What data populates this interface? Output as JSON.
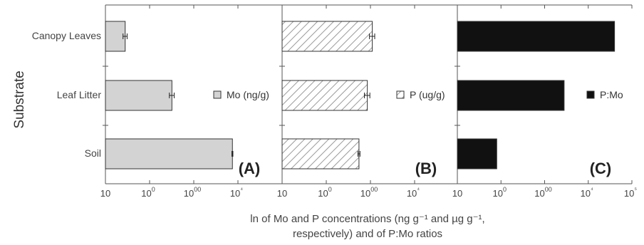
{
  "ylabel": "Substrate",
  "xlabel_line1": "ln of Mo and P concentrations (ng g⁻¹ and µg g⁻¹,",
  "xlabel_line2": "respectively) and of P:Mo ratios",
  "categories": [
    "Canopy Leaves",
    "Leaf Litter",
    "Soil"
  ],
  "chart_data": [
    {
      "type": "bar",
      "orientation": "horizontal",
      "panel": "(A)",
      "x_scale": "log",
      "xlim": [
        10,
        100000
      ],
      "x_tick_labels": [
        "10",
        "100",
        "1000",
        "10⁴"
      ],
      "categories": [
        "Canopy Leaves",
        "Leaf Litter",
        "Soil"
      ],
      "series": [
        {
          "name": "Mo (ng/g)",
          "values": [
            28,
            320,
            7500
          ],
          "errors": [
            3,
            40,
            200
          ]
        }
      ],
      "fill": "#d3d3d3",
      "pattern": "solid"
    },
    {
      "type": "bar",
      "orientation": "horizontal",
      "panel": "(B)",
      "x_scale": "log",
      "xlim": [
        10,
        100000
      ],
      "x_tick_labels": [
        "10",
        "100",
        "1000",
        "10⁴"
      ],
      "categories": [
        "Canopy Leaves",
        "Leaf Litter",
        "Soil"
      ],
      "series": [
        {
          "name": "P (ug/g)",
          "values": [
            1100,
            850,
            550
          ],
          "errors": [
            150,
            120,
            30
          ]
        }
      ],
      "fill": "#ffffff",
      "pattern": "hatched"
    },
    {
      "type": "bar",
      "orientation": "horizontal",
      "panel": "(C)",
      "x_scale": "log",
      "xlim": [
        10,
        100000
      ],
      "x_tick_labels": [
        "10",
        "100",
        "1000",
        "10⁴",
        "10⁵"
      ],
      "categories": [
        "Canopy Leaves",
        "Leaf Litter",
        "Soil"
      ],
      "series": [
        {
          "name": "P:Mo",
          "values": [
            40000,
            2800,
            80
          ]
        }
      ],
      "fill": "#111111",
      "pattern": "solid"
    }
  ]
}
